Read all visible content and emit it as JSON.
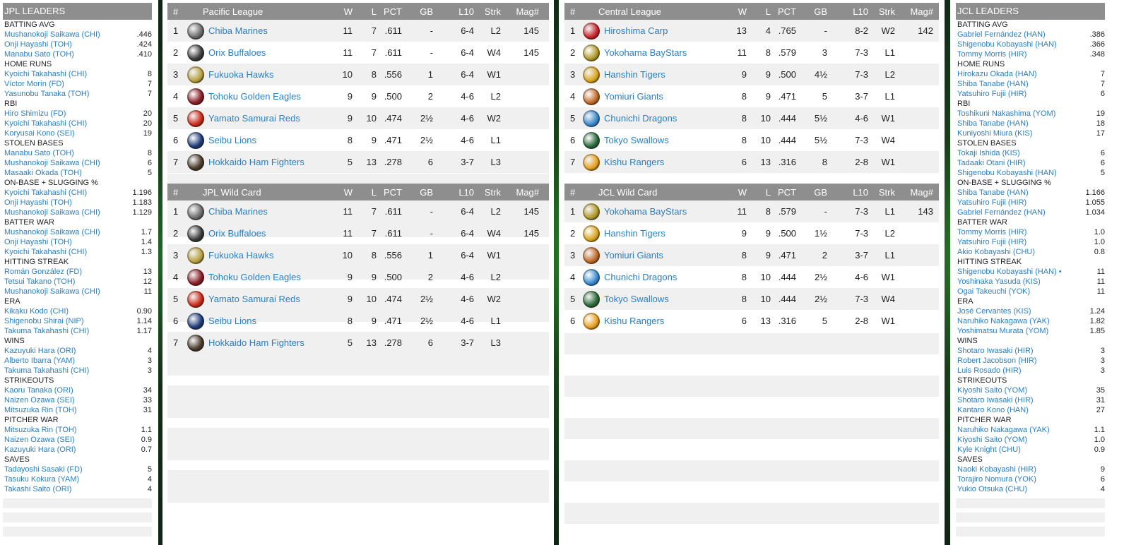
{
  "jpl_leaders": {
    "title": "JPL LEADERS",
    "categories": [
      {
        "name": "BATTING AVG",
        "rows": [
          [
            "Mushanokoji Saikawa (CHI)",
            ".446"
          ],
          [
            "Onji Hayashi (TOH)",
            ".424"
          ],
          [
            "Manabu Sato (TOH)",
            ".410"
          ]
        ]
      },
      {
        "name": "HOME RUNS",
        "rows": [
          [
            "Kyoichi Takahashi (CHI)",
            "8"
          ],
          [
            "Víctor Morín (FD)",
            "7"
          ],
          [
            "Yasunobu Tanaka (TOH)",
            "7"
          ]
        ]
      },
      {
        "name": "RBI",
        "rows": [
          [
            "Hiro Shimizu (FD)",
            "20"
          ],
          [
            "Kyoichi Takahashi (CHI)",
            "20"
          ],
          [
            "Koryusai Kono (SEI)",
            "19"
          ]
        ]
      },
      {
        "name": "STOLEN BASES",
        "rows": [
          [
            "Manabu Sato (TOH)",
            "8"
          ],
          [
            "Mushanokoji Saikawa (CHI)",
            "6"
          ],
          [
            "Masaaki Okada (TOH)",
            "5"
          ]
        ]
      },
      {
        "name": "ON-BASE + SLUGGING %",
        "rows": [
          [
            "Kyoichi Takahashi (CHI)",
            "1.196"
          ],
          [
            "Onji Hayashi (TOH)",
            "1.183"
          ],
          [
            "Mushanokoji Saikawa (CHI)",
            "1.129"
          ]
        ]
      },
      {
        "name": "BATTER WAR",
        "rows": [
          [
            "Mushanokoji Saikawa (CHI)",
            "1.7"
          ],
          [
            "Onji Hayashi (TOH)",
            "1.4"
          ],
          [
            "Kyoichi Takahashi (CHI)",
            "1.3"
          ]
        ]
      },
      {
        "name": "HITTING STREAK",
        "rows": [
          [
            "Román González (FD)",
            "13"
          ],
          [
            "Tetsui Takano (TOH)",
            "12"
          ],
          [
            "Mushanokoji Saikawa (CHI)",
            "11"
          ]
        ]
      },
      {
        "name": "ERA",
        "rows": [
          [
            "Kikaku Kodo (CHI)",
            "0.90"
          ],
          [
            "Shigenobu Shirai (NIP)",
            "1.14"
          ],
          [
            "Takuma Takahashi (CHI)",
            "1.17"
          ]
        ]
      },
      {
        "name": "WINS",
        "rows": [
          [
            "Kazuyuki Hara (ORI)",
            "4"
          ],
          [
            "Alberto Ibarra (YAM)",
            "3"
          ],
          [
            "Takuma Takahashi (CHI)",
            "3"
          ]
        ]
      },
      {
        "name": "STRIKEOUTS",
        "rows": [
          [
            "Kaoru Tanaka (ORI)",
            "34"
          ],
          [
            "Naizen Ozawa (SEI)",
            "33"
          ],
          [
            "Mitsuzuka Rin (TOH)",
            "31"
          ]
        ]
      },
      {
        "name": "PITCHER WAR",
        "rows": [
          [
            "Mitsuzuka Rin (TOH)",
            "1.1"
          ],
          [
            "Naizen Ozawa (SEI)",
            "0.9"
          ],
          [
            "Kazuyuki Hara (ORI)",
            "0.7"
          ]
        ]
      },
      {
        "name": "SAVES",
        "rows": [
          [
            "Tadayoshi Sasaki (FD)",
            "5"
          ],
          [
            "Tasuku Kokura (YAM)",
            "4"
          ],
          [
            "Takashi Saito (ORI)",
            "4"
          ]
        ]
      }
    ]
  },
  "jcl_leaders": {
    "title": "JCL LEADERS",
    "categories": [
      {
        "name": "BATTING AVG",
        "rows": [
          [
            "Gabriel Fernández (HAN)",
            ".386"
          ],
          [
            "Shigenobu Kobayashi (HAN)",
            ".366"
          ],
          [
            "Tommy Morris (HIR)",
            ".348"
          ]
        ]
      },
      {
        "name": "HOME RUNS",
        "rows": [
          [
            "Hirokazu Okada (HAN)",
            "7"
          ],
          [
            "Shiba Tanabe (HAN)",
            "7"
          ],
          [
            "Yatsuhiro Fujii (HIR)",
            "6"
          ]
        ]
      },
      {
        "name": "RBI",
        "rows": [
          [
            "Toshikuni Nakashima (YOM)",
            "19"
          ],
          [
            "Shiba Tanabe (HAN)",
            "18"
          ],
          [
            "Kuniyoshi Miura (KIS)",
            "17"
          ]
        ]
      },
      {
        "name": "STOLEN BASES",
        "rows": [
          [
            "Tokaji Ishida (KIS)",
            "6"
          ],
          [
            "Tadaaki Otani (HIR)",
            "6"
          ],
          [
            "Shigenobu Kobayashi (HAN)",
            "5"
          ]
        ]
      },
      {
        "name": "ON-BASE + SLUGGING %",
        "rows": [
          [
            "Shiba Tanabe (HAN)",
            "1.166"
          ],
          [
            "Yatsuhiro Fujii (HIR)",
            "1.055"
          ],
          [
            "Gabriel Fernández (HAN)",
            "1.034"
          ]
        ]
      },
      {
        "name": "BATTER WAR",
        "rows": [
          [
            "Tommy Morris (HIR)",
            "1.0"
          ],
          [
            "Yatsuhiro Fujii (HIR)",
            "1.0"
          ],
          [
            "Akio Kobayashi (CHU)",
            "0.8"
          ]
        ]
      },
      {
        "name": "HITTING STREAK",
        "rows": [
          [
            "Shigenobu Kobayashi (HAN) •",
            "11"
          ],
          [
            "Yoshinaka Yasuda (KIS)",
            "11"
          ],
          [
            "Ogai Takeuchi (YOK)",
            "11"
          ]
        ]
      },
      {
        "name": "ERA",
        "rows": [
          [
            "José Cervantes (KIS)",
            "1.24"
          ],
          [
            "Naruhiko Nakagawa (YAK)",
            "1.82"
          ],
          [
            "Yoshimatsu Murata (YOM)",
            "1.85"
          ]
        ]
      },
      {
        "name": "WINS",
        "rows": [
          [
            "Shotaro Iwasaki (HIR)",
            "3"
          ],
          [
            "Robert Jacobson (HIR)",
            "3"
          ],
          [
            "Luis Rosado (HIR)",
            "3"
          ]
        ]
      },
      {
        "name": "STRIKEOUTS",
        "rows": [
          [
            "Kiyoshi Saito (YOM)",
            "35"
          ],
          [
            "Shotaro Iwasaki (HIR)",
            "31"
          ],
          [
            "Kantaro Kono (HAN)",
            "27"
          ]
        ]
      },
      {
        "name": "PITCHER WAR",
        "rows": [
          [
            "Naruhiko Nakagawa (YAK)",
            "1.1"
          ],
          [
            "Kiyoshi Saito (YOM)",
            "1.0"
          ],
          [
            "Kyle Knight (CHU)",
            "0.9"
          ]
        ]
      },
      {
        "name": "SAVES",
        "rows": [
          [
            "Naoki Kobayashi (HIR)",
            "9"
          ],
          [
            "Torajiro Nomura (YOK)",
            "6"
          ],
          [
            "Yukio Otsuka (CHU)",
            "4"
          ]
        ]
      }
    ]
  },
  "headers": {
    "num": "#",
    "w": "W",
    "l": "L",
    "pct": "PCT",
    "gb": "GB",
    "l10": "L10",
    "strk": "Strk",
    "mag": "Mag#"
  },
  "tables": [
    {
      "title": "Pacific League",
      "rows": [
        {
          "num": "1",
          "team": "Chiba Marines",
          "logo": "#6b6b6b",
          "w": "11",
          "l": "7",
          "pct": ".611",
          "gb": "-",
          "l10": "6-4",
          "strk": "L2",
          "mag": "145"
        },
        {
          "num": "2",
          "team": "Orix Buffaloes",
          "logo": "#3a3a3a",
          "w": "11",
          "l": "7",
          "pct": ".611",
          "gb": "-",
          "l10": "6-4",
          "strk": "W4",
          "mag": "145"
        },
        {
          "num": "3",
          "team": "Fukuoka Hawks",
          "logo": "#b8a040",
          "w": "10",
          "l": "8",
          "pct": ".556",
          "gb": "1",
          "l10": "6-4",
          "strk": "W1",
          "mag": ""
        },
        {
          "num": "4",
          "team": "Tohoku Golden Eagles",
          "logo": "#8a1c24",
          "w": "9",
          "l": "9",
          "pct": ".500",
          "gb": "2",
          "l10": "4-6",
          "strk": "L2",
          "mag": ""
        },
        {
          "num": "5",
          "team": "Yamato Samurai Reds",
          "logo": "#cc2a1a",
          "w": "9",
          "l": "10",
          "pct": ".474",
          "gb": "2½",
          "l10": "4-6",
          "strk": "W2",
          "mag": ""
        },
        {
          "num": "6",
          "team": "Seibu Lions",
          "logo": "#1c3a7a",
          "w": "8",
          "l": "9",
          "pct": ".471",
          "gb": "2½",
          "l10": "4-6",
          "strk": "L1",
          "mag": ""
        },
        {
          "num": "7",
          "team": "Hokkaido Ham Fighters",
          "logo": "#4a3a2a",
          "w": "5",
          "l": "13",
          "pct": ".278",
          "gb": "6",
          "l10": "3-7",
          "strk": "L3",
          "mag": ""
        }
      ]
    },
    {
      "title": "JPL  Wild Card",
      "rows": [
        {
          "num": "1",
          "team": "Chiba Marines",
          "logo": "#6b6b6b",
          "w": "11",
          "l": "7",
          "pct": ".611",
          "gb": "-",
          "l10": "6-4",
          "strk": "L2",
          "mag": "145"
        },
        {
          "num": "2",
          "team": "Orix Buffaloes",
          "logo": "#3a3a3a",
          "w": "11",
          "l": "7",
          "pct": ".611",
          "gb": "-",
          "l10": "6-4",
          "strk": "W4",
          "mag": "145"
        },
        {
          "num": "3",
          "team": "Fukuoka Hawks",
          "logo": "#b8a040",
          "w": "10",
          "l": "8",
          "pct": ".556",
          "gb": "1",
          "l10": "6-4",
          "strk": "W1",
          "mag": ""
        },
        {
          "num": "4",
          "team": "Tohoku Golden Eagles",
          "logo": "#8a1c24",
          "w": "9",
          "l": "9",
          "pct": ".500",
          "gb": "2",
          "l10": "4-6",
          "strk": "L2",
          "mag": ""
        },
        {
          "num": "5",
          "team": "Yamato Samurai Reds",
          "logo": "#cc2a1a",
          "w": "9",
          "l": "10",
          "pct": ".474",
          "gb": "2½",
          "l10": "4-6",
          "strk": "W2",
          "mag": ""
        },
        {
          "num": "6",
          "team": "Seibu Lions",
          "logo": "#1c3a7a",
          "w": "8",
          "l": "9",
          "pct": ".471",
          "gb": "2½",
          "l10": "4-6",
          "strk": "L1",
          "mag": ""
        },
        {
          "num": "7",
          "team": "Hokkaido Ham Fighters",
          "logo": "#4a3a2a",
          "w": "5",
          "l": "13",
          "pct": ".278",
          "gb": "6",
          "l10": "3-7",
          "strk": "L3",
          "mag": ""
        }
      ]
    },
    {
      "title": "Central League",
      "rows": [
        {
          "num": "1",
          "team": "Hiroshima Carp",
          "logo": "#c8262a",
          "w": "13",
          "l": "4",
          "pct": ".765",
          "gb": "-",
          "l10": "8-2",
          "strk": "W2",
          "mag": "142"
        },
        {
          "num": "2",
          "team": "Yokohama BayStars",
          "logo": "#b09a2a",
          "w": "11",
          "l": "8",
          "pct": ".579",
          "gb": "3",
          "l10": "7-3",
          "strk": "L1",
          "mag": ""
        },
        {
          "num": "3",
          "team": "Hanshin Tigers",
          "logo": "#d9a520",
          "w": "9",
          "l": "9",
          "pct": ".500",
          "gb": "4½",
          "l10": "7-3",
          "strk": "L2",
          "mag": ""
        },
        {
          "num": "4",
          "team": "Yomiuri Giants",
          "logo": "#c06a2a",
          "w": "8",
          "l": "9",
          "pct": ".471",
          "gb": "5",
          "l10": "3-7",
          "strk": "L1",
          "mag": ""
        },
        {
          "num": "5",
          "team": "Chunichi Dragons",
          "logo": "#3a8ad0",
          "w": "8",
          "l": "10",
          "pct": ".444",
          "gb": "5½",
          "l10": "4-6",
          "strk": "W1",
          "mag": ""
        },
        {
          "num": "6",
          "team": "Tokyo Swallows",
          "logo": "#2a6a3a",
          "w": "8",
          "l": "10",
          "pct": ".444",
          "gb": "5½",
          "l10": "7-3",
          "strk": "W4",
          "mag": ""
        },
        {
          "num": "7",
          "team": "Kishu Rangers",
          "logo": "#e8a020",
          "w": "6",
          "l": "13",
          "pct": ".316",
          "gb": "8",
          "l10": "2-8",
          "strk": "W1",
          "mag": ""
        }
      ]
    },
    {
      "title": "JCL  Wild Card",
      "rows": [
        {
          "num": "1",
          "team": "Yokohama BayStars",
          "logo": "#b09a2a",
          "w": "11",
          "l": "8",
          "pct": ".579",
          "gb": "-",
          "l10": "7-3",
          "strk": "L1",
          "mag": "143"
        },
        {
          "num": "2",
          "team": "Hanshin Tigers",
          "logo": "#d9a520",
          "w": "9",
          "l": "9",
          "pct": ".500",
          "gb": "1½",
          "l10": "7-3",
          "strk": "L2",
          "mag": ""
        },
        {
          "num": "3",
          "team": "Yomiuri Giants",
          "logo": "#c06a2a",
          "w": "8",
          "l": "9",
          "pct": ".471",
          "gb": "2",
          "l10": "3-7",
          "strk": "L1",
          "mag": ""
        },
        {
          "num": "4",
          "team": "Chunichi Dragons",
          "logo": "#3a8ad0",
          "w": "8",
          "l": "10",
          "pct": ".444",
          "gb": "2½",
          "l10": "4-6",
          "strk": "W1",
          "mag": ""
        },
        {
          "num": "5",
          "team": "Tokyo Swallows",
          "logo": "#2a6a3a",
          "w": "8",
          "l": "10",
          "pct": ".444",
          "gb": "2½",
          "l10": "7-3",
          "strk": "W4",
          "mag": ""
        },
        {
          "num": "6",
          "team": "Kishu Rangers",
          "logo": "#e8a020",
          "w": "6",
          "l": "13",
          "pct": ".316",
          "gb": "5",
          "l10": "2-8",
          "strk": "W1",
          "mag": ""
        }
      ]
    }
  ]
}
